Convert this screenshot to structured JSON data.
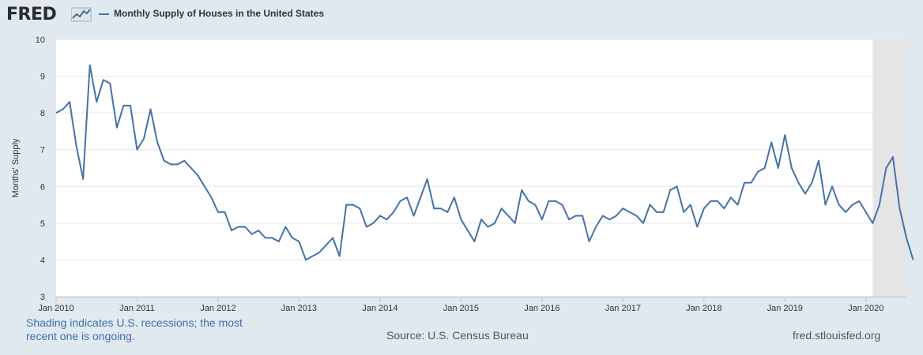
{
  "header": {
    "logo_text": "FRED",
    "logo_icon": "fred-chart-icon",
    "series_title": "Monthly Supply of Houses in the United States"
  },
  "footer": {
    "recession_note": "Shading indicates U.S. recessions; the most recent one is ongoing.",
    "source": "Source: U.S. Census Bureau",
    "site": "fred.stlouisfed.org"
  },
  "colors": {
    "line": "#4572a7",
    "recession_shading": "#e5e5e5",
    "background": "#e1e9f0",
    "plot": "#ffffff"
  },
  "chart_data": {
    "type": "line",
    "title": "",
    "ylabel": "Months' Supply",
    "xlabel": "",
    "ylim": [
      3,
      10
    ],
    "yticks": [
      3,
      4,
      5,
      6,
      7,
      8,
      9,
      10
    ],
    "xlim": [
      "2010-01",
      "2020-07"
    ],
    "xticks": [
      {
        "label": "Jan 2010",
        "date": "2010-01"
      },
      {
        "label": "Jan 2011",
        "date": "2011-01"
      },
      {
        "label": "Jan 2012",
        "date": "2012-01"
      },
      {
        "label": "Jan 2013",
        "date": "2013-01"
      },
      {
        "label": "Jan 2014",
        "date": "2014-01"
      },
      {
        "label": "Jan 2015",
        "date": "2015-01"
      },
      {
        "label": "Jan 2016",
        "date": "2016-01"
      },
      {
        "label": "Jan 2017",
        "date": "2017-01"
      },
      {
        "label": "Jan 2018",
        "date": "2018-01"
      },
      {
        "label": "Jan 2019",
        "date": "2019-01"
      },
      {
        "label": "Jan 2020",
        "date": "2020-01"
      }
    ],
    "recessions": [
      {
        "start": "2020-02",
        "end": "2020-07"
      }
    ],
    "grid": true,
    "series": [
      {
        "name": "Monthly Supply of Houses in the United States",
        "start": "2010-01",
        "frequency": "monthly",
        "values": [
          8.0,
          8.1,
          8.3,
          7.1,
          6.2,
          9.3,
          8.3,
          8.9,
          8.8,
          7.6,
          8.2,
          8.2,
          7.0,
          7.3,
          8.1,
          7.2,
          6.7,
          6.6,
          6.6,
          6.7,
          6.5,
          6.3,
          6.0,
          5.7,
          5.3,
          5.3,
          4.8,
          4.9,
          4.9,
          4.7,
          4.8,
          4.6,
          4.6,
          4.5,
          4.9,
          4.6,
          4.5,
          4.0,
          4.1,
          4.2,
          4.4,
          4.6,
          4.1,
          5.5,
          5.5,
          5.4,
          4.9,
          5.0,
          5.2,
          5.1,
          5.3,
          5.6,
          5.7,
          5.2,
          5.7,
          6.2,
          5.4,
          5.4,
          5.3,
          5.7,
          5.1,
          4.8,
          4.5,
          5.1,
          4.9,
          5.0,
          5.4,
          5.2,
          5.0,
          5.9,
          5.6,
          5.5,
          5.1,
          5.6,
          5.6,
          5.5,
          5.1,
          5.2,
          5.2,
          4.5,
          4.9,
          5.2,
          5.1,
          5.2,
          5.4,
          5.3,
          5.2,
          5.0,
          5.5,
          5.3,
          5.3,
          5.9,
          6.0,
          5.3,
          5.5,
          4.9,
          5.4,
          5.6,
          5.6,
          5.4,
          5.7,
          5.5,
          6.1,
          6.1,
          6.4,
          6.5,
          7.2,
          6.5,
          7.4,
          6.5,
          6.1,
          5.8,
          6.1,
          6.7,
          5.5,
          6.0,
          5.5,
          5.3,
          5.5,
          5.6,
          5.3,
          5.0,
          5.5,
          6.5,
          6.8,
          5.4,
          4.6,
          4.0
        ]
      }
    ]
  }
}
